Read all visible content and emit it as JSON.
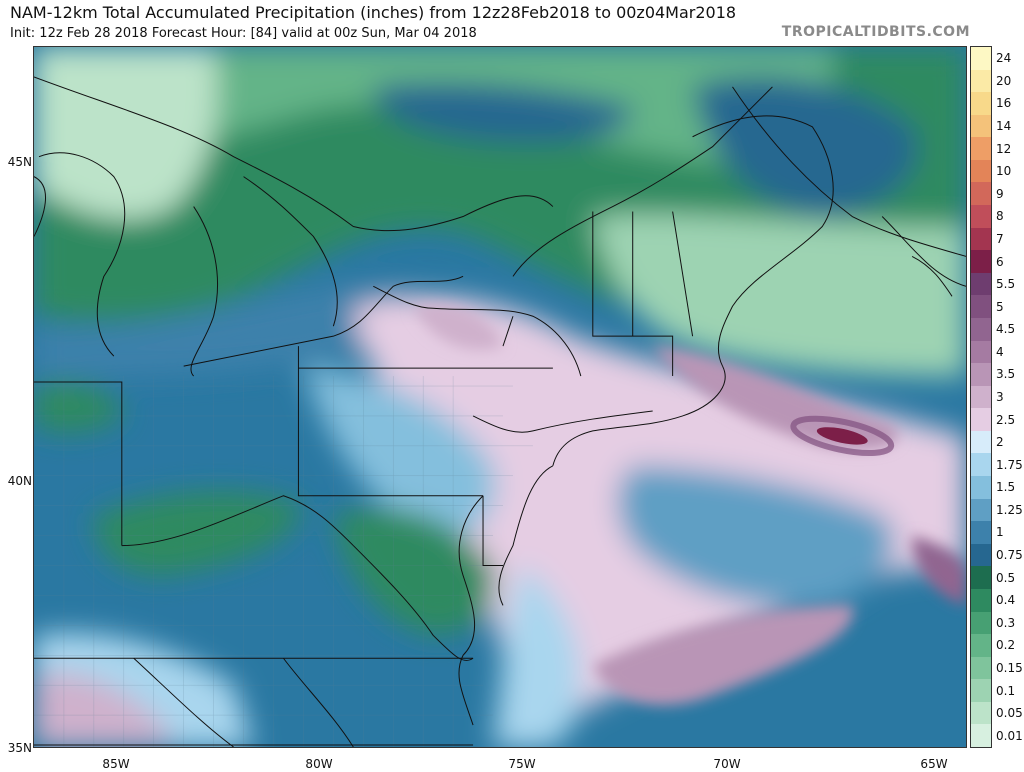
{
  "header": {
    "title": "NAM-12km Total Accumulated Precipitation (inches) from 12z28Feb2018 to 00z04Mar2018",
    "subtitle": "Init: 12z Feb 28 2018   Forecast Hour: [84]   valid at 00z Sun, Mar 04 2018",
    "brand": "TROPICALTIDBITS.COM"
  },
  "map": {
    "lat_labels": [
      "45N",
      "40N",
      "35N"
    ],
    "lon_labels": [
      "85W",
      "80W",
      "75W",
      "70W",
      "65W"
    ]
  },
  "legend": {
    "labels": [
      "24",
      "20",
      "16",
      "14",
      "12",
      "10",
      "9",
      "8",
      "7",
      "6",
      "5.5",
      "5",
      "4.5",
      "4",
      "3.5",
      "3",
      "2.5",
      "2",
      "1.75",
      "1.5",
      "1.25",
      "1",
      "0.75",
      "0.5",
      "0.4",
      "0.3",
      "0.2",
      "0.15",
      "0.1",
      "0.05",
      "0.01"
    ],
    "colors": [
      "#fdf8c4",
      "#fbeaa6",
      "#f8d98a",
      "#f4c27a",
      "#ee9e66",
      "#e38458",
      "#d2685a",
      "#c04e5a",
      "#a33550",
      "#7c1f48",
      "#6e3d6f",
      "#80507f",
      "#916590",
      "#a57ba2",
      "#b995b6",
      "#cfb1cc",
      "#e5cde3",
      "#d7ecfa",
      "#a9d6ee",
      "#84bfdd",
      "#5f9fc4",
      "#3d81ab",
      "#266790",
      "#1d6d4f",
      "#2e8a60",
      "#47a073",
      "#63b488",
      "#7fc49c",
      "#9dd3b2",
      "#bce3c9",
      "#d7f0e0"
    ]
  }
}
